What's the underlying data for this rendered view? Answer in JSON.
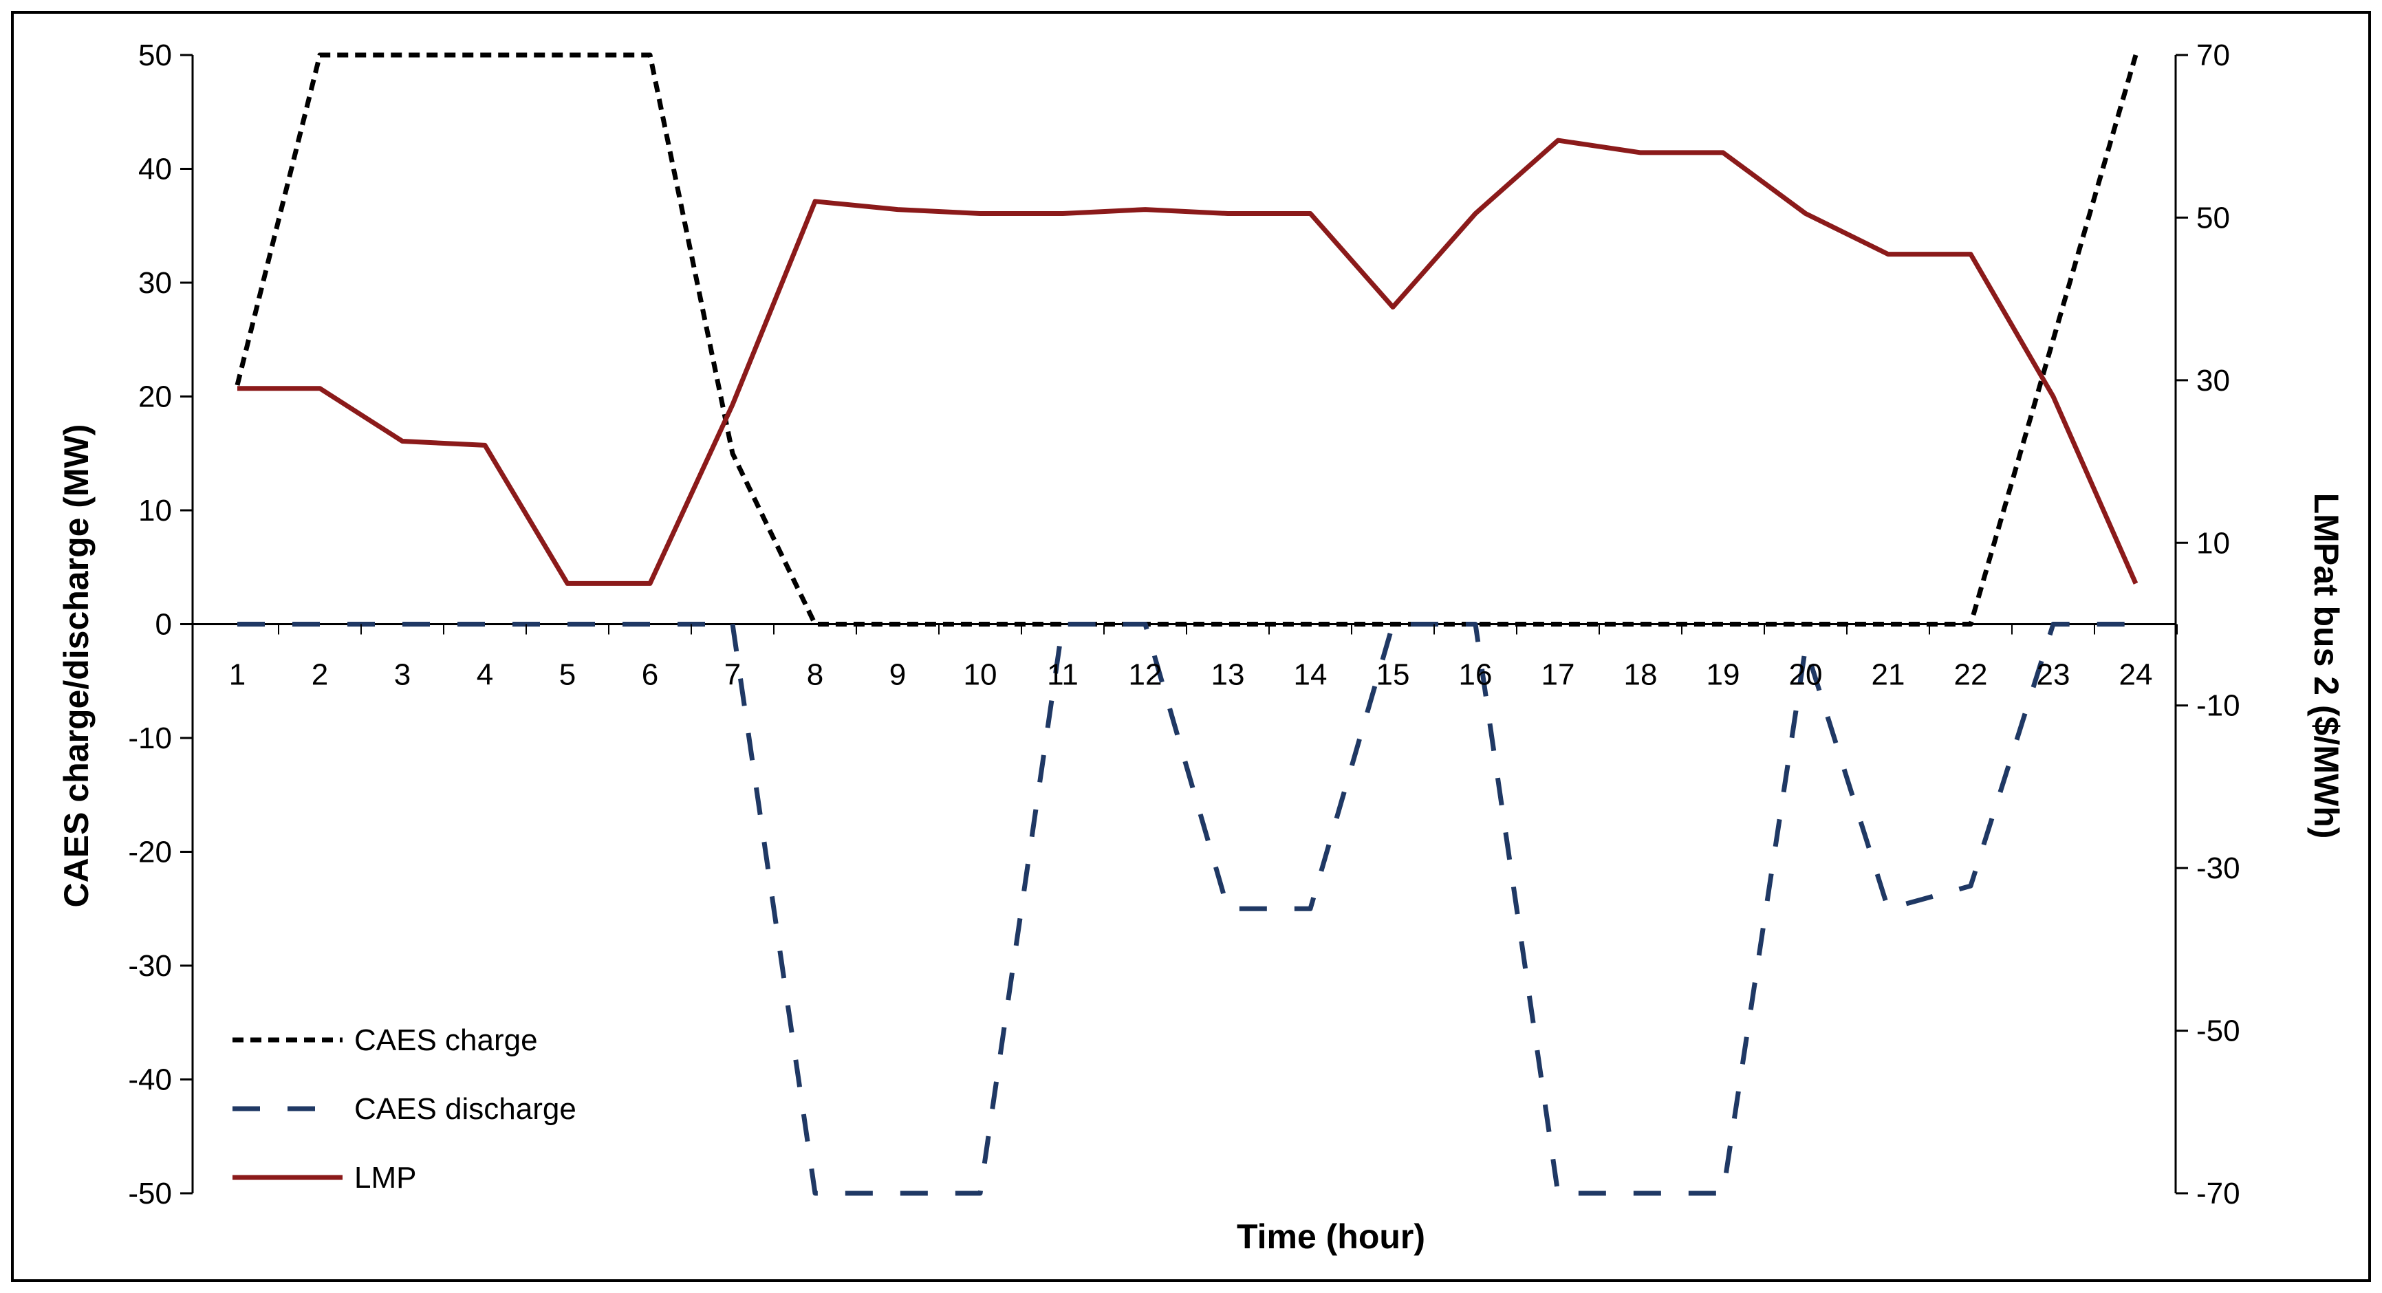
{
  "chart_data": {
    "type": "line",
    "x": [
      1,
      2,
      3,
      4,
      5,
      6,
      7,
      8,
      9,
      10,
      11,
      12,
      13,
      14,
      15,
      16,
      17,
      18,
      19,
      20,
      21,
      22,
      23,
      24
    ],
    "xlabel": "Time (hour)",
    "ylabel": "CAES charge/discharge (MW)",
    "ylabel_right": "LMPat bus 2 ($/MWh)",
    "ylim": [
      -50,
      50
    ],
    "ylim_right": [
      -70,
      70
    ],
    "yticks": [
      50,
      40,
      30,
      20,
      10,
      0,
      -10,
      -20,
      -30,
      -40,
      -50
    ],
    "yticks_right": [
      70,
      50,
      30,
      10,
      -10,
      -30,
      -50,
      -70
    ],
    "grid": false,
    "legend_position": "bottom-left",
    "series": [
      {
        "name": "CAES charge",
        "axis": "left",
        "color": "#000000",
        "style": "short-dash",
        "values": [
          21,
          50,
          50,
          50,
          50,
          50,
          15,
          0,
          0,
          0,
          0,
          0,
          0,
          0,
          0,
          0,
          0,
          0,
          0,
          0,
          0,
          0,
          25,
          50
        ]
      },
      {
        "name": "CAES discharge",
        "axis": "left",
        "color": "#1F3864",
        "style": "long-dash",
        "values": [
          0,
          0,
          0,
          0,
          0,
          0,
          0,
          -50,
          -50,
          -50,
          0,
          0,
          -25,
          -25,
          0,
          0,
          -50,
          -50,
          -50,
          -2,
          -25,
          -23,
          0,
          0
        ]
      },
      {
        "name": "LMP",
        "axis": "right",
        "color": "#8B1A1A",
        "style": "solid",
        "values": [
          29,
          29,
          22.5,
          22,
          5,
          5,
          27,
          52,
          51,
          50.5,
          50.5,
          51,
          50.5,
          50.5,
          39,
          50.5,
          59.5,
          58,
          58,
          50.5,
          45.5,
          45.5,
          28,
          5
        ]
      }
    ]
  }
}
